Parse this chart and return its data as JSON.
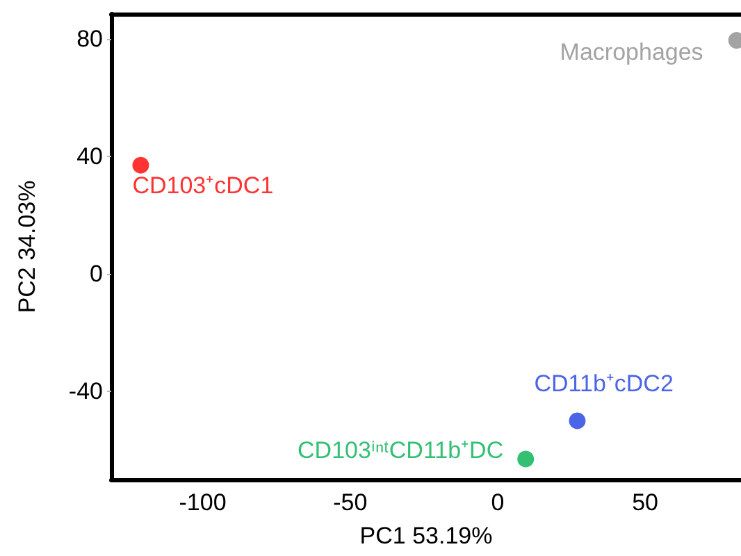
{
  "chart_data": {
    "type": "scatter",
    "xlabel": "PC1 53.19%",
    "ylabel": "PC2 34.03%",
    "xlim": [
      -131,
      82.5
    ],
    "ylim": [
      -70,
      88.5
    ],
    "xticks": [
      -100,
      -50,
      0,
      50
    ],
    "yticks": [
      -40,
      0,
      40,
      80
    ],
    "grid": false,
    "legend": false,
    "marker": "circle",
    "series": [
      {
        "name": "CD103⁺cDC1",
        "color": "#ff0000",
        "x": [
          -121
        ],
        "values": [
          37
        ]
      },
      {
        "name": "Macrophages",
        "color": "#8c8c8c",
        "x": [
          81
        ],
        "values": [
          79.5
        ]
      },
      {
        "name": "CD11b⁺cDC2",
        "color": "#1f3fe0",
        "x": [
          27
        ],
        "values": [
          -50
        ]
      },
      {
        "name": "CD103ⁱⁿᵗCD11b⁺DC",
        "color": "#00b050",
        "x": [
          9.5
        ],
        "values": [
          -63
        ]
      }
    ]
  }
}
